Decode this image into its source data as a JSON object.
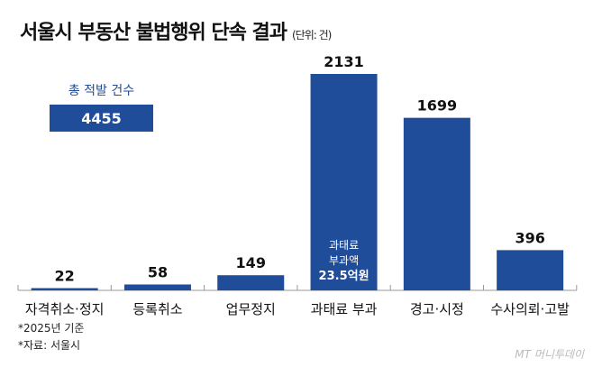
{
  "title": "서울시 부동산 불법행위 단속 결과",
  "unit": "(단위: 건)",
  "total": {
    "label": "총 적발 건수",
    "value": "4455"
  },
  "chart_data": {
    "type": "bar",
    "categories": [
      "자격취소·정지",
      "등록취소",
      "업무정지",
      "과태료 부과",
      "경고·시정",
      "수사의뢰·고발"
    ],
    "values": [
      22,
      58,
      149,
      2131,
      1699,
      396
    ],
    "annotation": {
      "category": "과태료 부과",
      "lines": [
        "과태료",
        "부과액",
        "23.5억원"
      ]
    },
    "color": "#1f4d9a",
    "ylim": [
      0,
      2131
    ]
  },
  "notes": [
    "*2025년 기준",
    "*자료: 서울시"
  ],
  "logo": "MT 머니투데이"
}
